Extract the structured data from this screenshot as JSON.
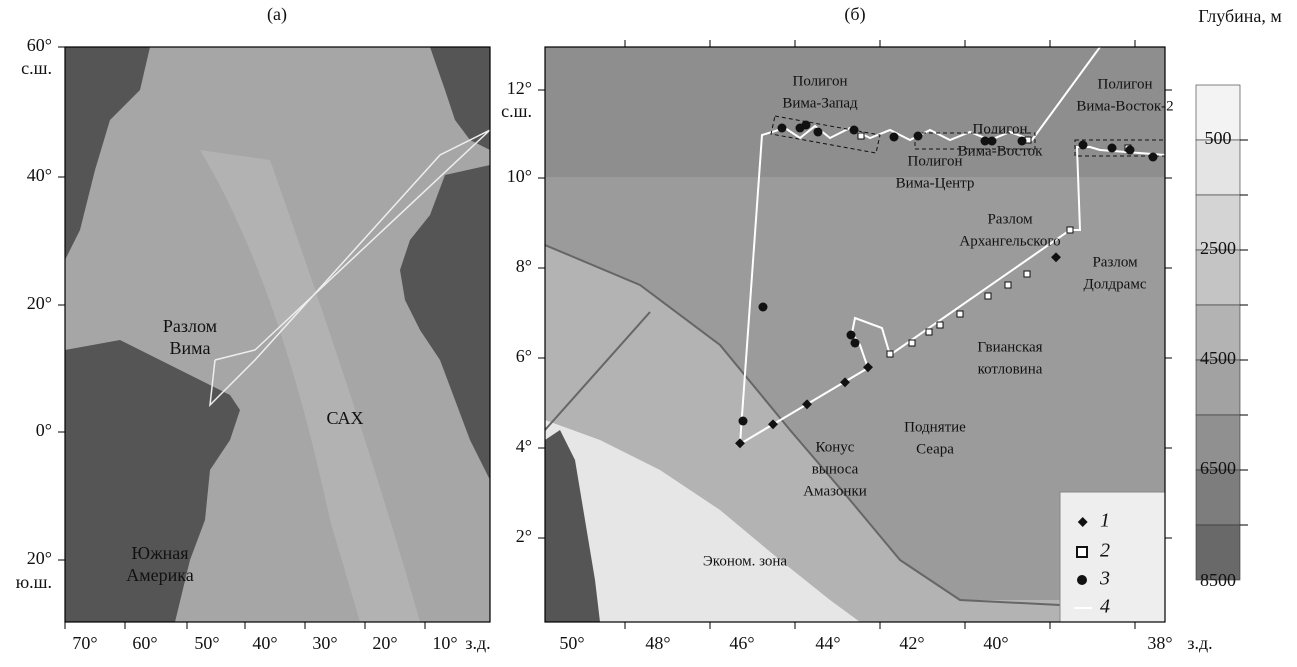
{
  "panel_a": {
    "label": "(а)",
    "lat_labels": [
      "60°",
      "40°",
      "20°",
      "0°",
      "20°"
    ],
    "lat_hemi": [
      "с.ш.",
      "ю.ш."
    ],
    "lon_labels": [
      "70°",
      "60°",
      "50°",
      "40°",
      "30°",
      "20°",
      "10°"
    ],
    "lon_unit": "з.д.",
    "places": [
      {
        "lines": [
          "Разлом",
          "Вима"
        ]
      },
      {
        "lines": [
          "САХ"
        ]
      },
      {
        "lines": [
          "Южная",
          "Америка"
        ]
      }
    ]
  },
  "panel_b": {
    "label": "(б)",
    "lat_labels": [
      "12°",
      "10°",
      "8°",
      "6°",
      "4°",
      "2°"
    ],
    "lat_hemi": "с.ш.",
    "lon_labels": [
      "50°",
      "48°",
      "46°",
      "44°",
      "42°",
      "40°",
      "38°"
    ],
    "lon_unit": "з.д.",
    "places": [
      {
        "lines": [
          "Полигон",
          "Вима-Запад"
        ]
      },
      {
        "lines": [
          "Полигон",
          "Вима-Восток"
        ]
      },
      {
        "lines": [
          "Полигон",
          "Вима-Центр"
        ]
      },
      {
        "lines": [
          "Полигон",
          "Вима-Восток-2"
        ]
      },
      {
        "lines": [
          "Разлом",
          "Архангельского"
        ]
      },
      {
        "lines": [
          "Разлом",
          "Долдрамс"
        ]
      },
      {
        "lines": [
          "Гвианская",
          "котловина"
        ]
      },
      {
        "lines": [
          "Поднятие",
          "Сеара"
        ]
      },
      {
        "lines": [
          "Конус",
          "выноса",
          "Амазонки"
        ]
      },
      {
        "lines": [
          "Эконом. зона"
        ]
      }
    ],
    "legend": [
      "1",
      "2",
      "3",
      "4"
    ]
  },
  "colorbar": {
    "title": "Глубина, м",
    "labels": [
      "500",
      "2500",
      "4500",
      "6500",
      "8500"
    ]
  }
}
